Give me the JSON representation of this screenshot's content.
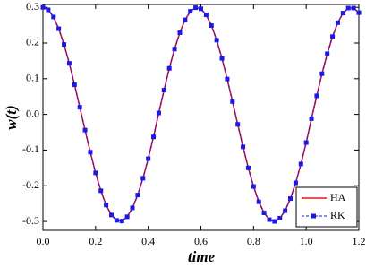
{
  "chart_data": {
    "type": "line",
    "x_label": "time",
    "y_label": "w(t)",
    "x": [
      0,
      0.02,
      0.04,
      0.06,
      0.08,
      0.1,
      0.12,
      0.14,
      0.16,
      0.18,
      0.2,
      0.22,
      0.24,
      0.26,
      0.28,
      0.3,
      0.32,
      0.34,
      0.36,
      0.38,
      0.4,
      0.42,
      0.44,
      0.46,
      0.48,
      0.5,
      0.52,
      0.54,
      0.56,
      0.58,
      0.6,
      0.62,
      0.64,
      0.66,
      0.68,
      0.7,
      0.72,
      0.74,
      0.76,
      0.78,
      0.8,
      0.82,
      0.84,
      0.86,
      0.88,
      0.9,
      0.92,
      0.94,
      0.96,
      0.98,
      1.0,
      1.02,
      1.04,
      1.06,
      1.08,
      1.1,
      1.12,
      1.14,
      1.16,
      1.18,
      1.2
    ],
    "series": [
      {
        "name": "HA",
        "color": "#e8141c",
        "style": "solid",
        "values": [
          0.3,
          0.293,
          0.273,
          0.24,
          0.196,
          0.143,
          0.083,
          0.02,
          -0.044,
          -0.106,
          -0.164,
          -0.214,
          -0.254,
          -0.282,
          -0.297,
          -0.299,
          -0.287,
          -0.262,
          -0.226,
          -0.179,
          -0.124,
          -0.063,
          0.004,
          0.068,
          0.129,
          0.183,
          0.229,
          0.265,
          0.289,
          0.299,
          0.296,
          0.279,
          0.249,
          0.208,
          0.157,
          0.099,
          0.036,
          -0.028,
          -0.091,
          -0.15,
          -0.202,
          -0.245,
          -0.276,
          -0.295,
          -0.3,
          -0.291,
          -0.27,
          -0.236,
          -0.192,
          -0.139,
          -0.079,
          -0.012,
          0.052,
          0.114,
          0.17,
          0.218,
          0.257,
          0.284,
          0.298,
          0.298,
          0.285
        ]
      },
      {
        "name": "RK",
        "color": "#1a1ae6",
        "style": "dashed-square",
        "values": [
          0.3,
          0.293,
          0.273,
          0.24,
          0.196,
          0.143,
          0.083,
          0.02,
          -0.044,
          -0.106,
          -0.164,
          -0.214,
          -0.254,
          -0.282,
          -0.297,
          -0.299,
          -0.287,
          -0.262,
          -0.226,
          -0.179,
          -0.124,
          -0.063,
          0.004,
          0.068,
          0.129,
          0.183,
          0.229,
          0.265,
          0.289,
          0.299,
          0.296,
          0.279,
          0.249,
          0.208,
          0.157,
          0.099,
          0.036,
          -0.028,
          -0.091,
          -0.15,
          -0.202,
          -0.245,
          -0.276,
          -0.295,
          -0.3,
          -0.291,
          -0.27,
          -0.236,
          -0.192,
          -0.139,
          -0.079,
          -0.012,
          0.052,
          0.114,
          0.17,
          0.218,
          0.257,
          0.284,
          0.298,
          0.298,
          0.285
        ]
      }
    ],
    "xlim": [
      0,
      1.2
    ],
    "xticks": [
      {
        "value": 0,
        "label": "0.0"
      },
      0.2,
      0.4,
      0.6,
      0.8,
      {
        "value": 1,
        "label": "1.0"
      },
      1.2
    ],
    "ylim": [
      -0.325,
      0.308
    ],
    "yticks": [
      -0.3,
      -0.2,
      -0.1,
      {
        "value": 0,
        "label": "0.0"
      },
      0.1,
      0.2,
      0.3
    ],
    "legend": "bottom-right"
  }
}
